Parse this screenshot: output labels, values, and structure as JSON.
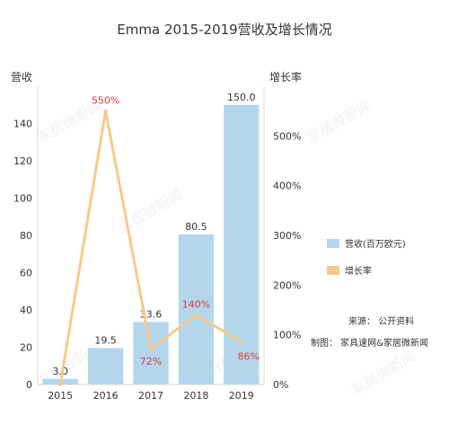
{
  "chart_data": {
    "type": "bar+line",
    "title": "Emma 2015-2019营收及增长情况",
    "categories": [
      "2015",
      "2016",
      "2017",
      "2018",
      "2019"
    ],
    "series": [
      {
        "name": "营收(百万欧元)",
        "type": "bar",
        "axis": "left",
        "values": [
          3.0,
          19.5,
          33.6,
          80.5,
          150.0
        ],
        "labels": [
          "3.0",
          "19.5",
          "33.6",
          "80.5",
          "150.0"
        ]
      },
      {
        "name": "增长率",
        "type": "line",
        "axis": "right",
        "values": [
          0,
          550,
          72,
          140,
          86
        ],
        "labels": [
          "",
          "550%",
          "72%",
          "140%",
          "86%"
        ]
      }
    ],
    "left_axis": {
      "label": "营收",
      "ylim": [
        0,
        160
      ],
      "ticks": [
        0,
        20,
        40,
        60,
        80,
        100,
        120,
        140
      ],
      "tick_labels": [
        "0",
        "20",
        "40",
        "60",
        "80",
        "100",
        "120",
        "140"
      ]
    },
    "right_axis": {
      "label": "增长率",
      "ylim": [
        0,
        600
      ],
      "ticks": [
        0,
        100,
        200,
        300,
        400,
        500
      ],
      "tick_labels": [
        "0%",
        "100%",
        "200%",
        "300%",
        "400%",
        "500%"
      ]
    },
    "legend": {
      "placement": "right",
      "items": [
        "营收(百万欧元)",
        "增长率"
      ]
    },
    "grid": false,
    "colors": {
      "bar": "#b3d6ec",
      "line": "#f7c98b",
      "line_label": "#e03c3c",
      "text": "#333333",
      "axis": "#cccccc"
    }
  },
  "notes": {
    "source": "来源：  公开资料",
    "producer": "制图：  家具速网&家居微新闻"
  },
  "watermark": "家居微新闻"
}
